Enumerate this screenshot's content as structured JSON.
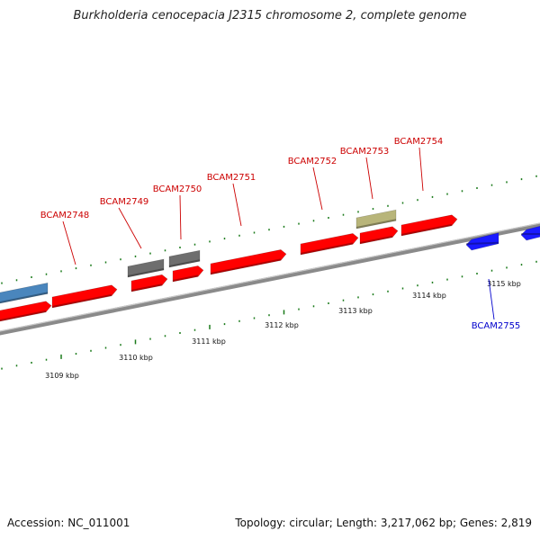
{
  "title": "Burkholderia cenocepacia J2315 chromosome 2, complete genome",
  "accession": "Accession: NC_011001",
  "summary": "Topology: circular; Length: 3,217,062 bp; Genes: 2,819",
  "colors": {
    "cds": "#ff0000",
    "cds_dark": "#b00000",
    "gray": "#6e6e6e",
    "steel": "#4a86bd",
    "olive": "#b8b57a",
    "blue": "#1a1aff",
    "tick": "#1a7a1a",
    "backbone": "#8a8a8a",
    "label_red": "#cc0000",
    "label_blue": "#0000cc"
  },
  "kbp_labels": [
    {
      "kbp": 3109,
      "text": "3109 kbp"
    },
    {
      "kbp": 3110,
      "text": "3110 kbp"
    },
    {
      "kbp": 3111,
      "text": "3111 kbp"
    },
    {
      "kbp": 3112,
      "text": "3112 kbp"
    },
    {
      "kbp": 3113,
      "text": "3113 kbp"
    },
    {
      "kbp": 3114,
      "text": "3114 kbp"
    },
    {
      "kbp": 3115,
      "text": "3115 kbp"
    }
  ],
  "genes": [
    {
      "name": "BCAM2748",
      "color": "label_red"
    },
    {
      "name": "BCAM2749",
      "color": "label_red"
    },
    {
      "name": "BCAM2750",
      "color": "label_red"
    },
    {
      "name": "BCAM2751",
      "color": "label_red"
    },
    {
      "name": "BCAM2752",
      "color": "label_red"
    },
    {
      "name": "BCAM2753",
      "color": "label_red"
    },
    {
      "name": "BCAM2754",
      "color": "label_red"
    },
    {
      "name": "BCAM2755",
      "color": "label_blue"
    }
  ]
}
